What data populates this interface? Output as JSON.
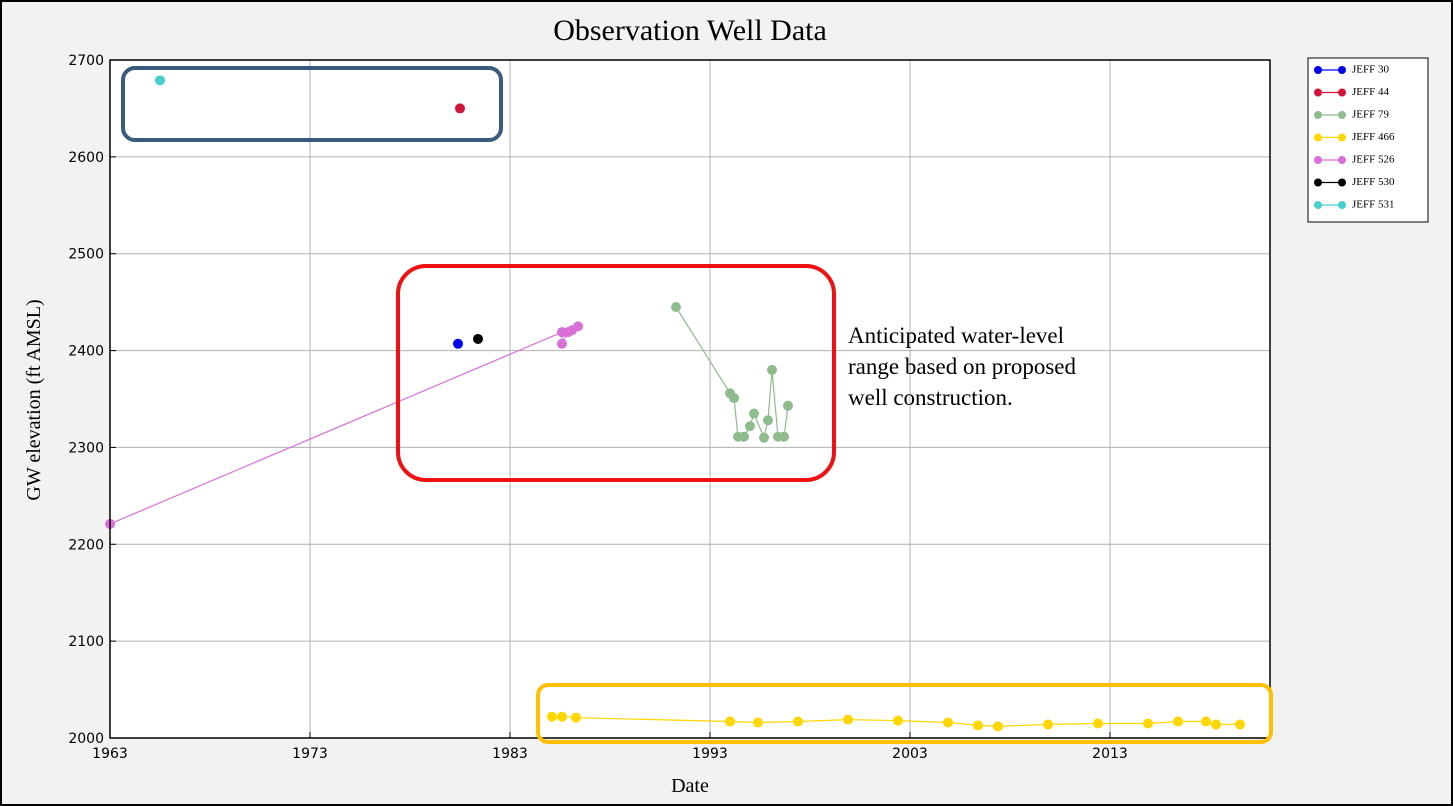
{
  "chart_data": {
    "type": "line",
    "title": "Observation Well Data",
    "x_label": "Date",
    "y_label": "GW elevation (ft AMSL)",
    "annotation": "Anticipated water-level range based on proposed well construction.",
    "xlim": [
      1963,
      2021
    ],
    "xticks": [
      1963,
      1973,
      1983,
      1993,
      2003,
      2013
    ],
    "ylim": [
      2000,
      2700
    ],
    "yticks": [
      2000,
      2100,
      2200,
      2300,
      2400,
      2500,
      2600,
      2700
    ],
    "grid": true,
    "legend": "upper right",
    "series": [
      {
        "name": "JEFF 30",
        "color": "#0000ee",
        "x": [
          1980.4
        ],
        "values": [
          2407
        ]
      },
      {
        "name": "JEFF 44",
        "color": "#d0143c",
        "x": [
          1980.5
        ],
        "values": [
          2650
        ]
      },
      {
        "name": "JEFF 79",
        "color": "#8fbc8f",
        "x": [
          1991.3,
          1994.0,
          1994.2,
          1994.4,
          1994.7,
          1995.0,
          1995.2,
          1995.7,
          1995.9,
          1996.1,
          1996.4,
          1996.7,
          1996.9
        ],
        "values": [
          2445,
          2356,
          2351,
          2311,
          2311,
          2322,
          2335,
          2310,
          2328,
          2380,
          2311,
          2311,
          2343
        ]
      },
      {
        "name": "JEFF 466",
        "color": "#ffd700",
        "x": [
          1985.1,
          1985.6,
          1986.3,
          1994.0,
          1995.4,
          1997.4,
          1999.9,
          2002.4,
          2004.9,
          2006.4,
          2007.4,
          2009.9,
          2012.4,
          2014.9,
          2016.4,
          2017.8,
          2018.3,
          2019.5
        ],
        "values": [
          2022,
          2022,
          2021,
          2017,
          2016,
          2017,
          2019,
          2018,
          2016,
          2013,
          2012,
          2014,
          2015,
          2015,
          2017,
          2017,
          2014,
          2014
        ]
      },
      {
        "name": "JEFF 526",
        "color": "#da70d6",
        "x": [
          1963.0,
          1985.6,
          1985.6,
          1985.9,
          1986.1,
          1986.4
        ],
        "values": [
          2221,
          2419,
          2407,
          2419,
          2421,
          2425
        ]
      },
      {
        "name": "JEFF 530",
        "color": "#000000",
        "x": [
          1981.4
        ],
        "values": [
          2412
        ]
      },
      {
        "name": "JEFF 531",
        "color": "#48d1cc",
        "x": [
          1965.5
        ],
        "values": [
          2679
        ]
      }
    ]
  }
}
